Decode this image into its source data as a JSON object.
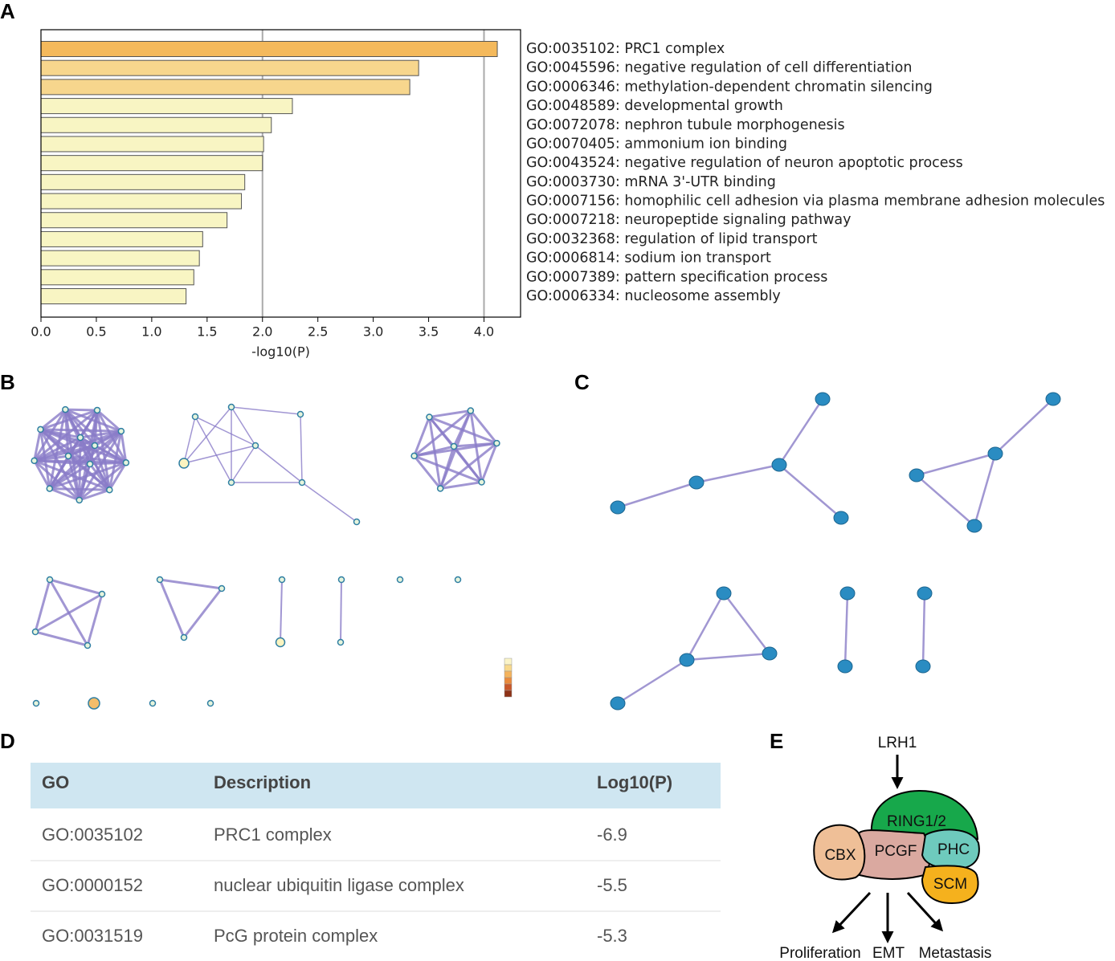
{
  "panel_labels": [
    "A",
    "B",
    "C",
    "D",
    "E"
  ],
  "chart_data": {
    "type": "hbar",
    "x_label": "-log10(P)",
    "categories": [
      "GO:0035102: PRC1 complex",
      "GO:0045596: negative regulation of cell differentiation",
      "GO:0006346: methylation-dependent chromatin silencing",
      "GO:0048589: developmental growth",
      "GO:0072078: nephron tubule morphogenesis",
      "GO:0070405: ammonium ion binding",
      "GO:0043524: negative regulation of neuron apoptotic process",
      "GO:0003730: mRNA 3'-UTR binding",
      "GO:0007156: homophilic cell adhesion via plasma membrane adhesion molecules",
      "GO:0007218: neuropeptide signaling pathway",
      "GO:0032368: regulation of lipid transport",
      "GO:0006814: sodium ion transport",
      "GO:0007389: pattern specification process",
      "GO:0006334: nucleosome assembly"
    ],
    "values": [
      4.12,
      3.41,
      3.33,
      2.27,
      2.08,
      2.01,
      2.0,
      1.84,
      1.81,
      1.68,
      1.46,
      1.43,
      1.38,
      1.31
    ],
    "colors": [
      "#f4b95c",
      "#f7d68d",
      "#f7d68d",
      "#f8f5c3",
      "#f8f5c3",
      "#f8f5c3",
      "#f8f5c3",
      "#f8f5c3",
      "#f8f5c3",
      "#f8f5c3",
      "#f8f5c3",
      "#f8f5c3",
      "#f8f5c3",
      "#f8f5c3"
    ],
    "xlim": [
      0,
      4.33
    ],
    "xticks": [
      {
        "value": 0,
        "label": "0.0"
      },
      {
        "value": 0.5,
        "label": "0.5"
      },
      {
        "value": 1,
        "label": "1.0"
      },
      {
        "value": 1.5,
        "label": "1.5"
      },
      {
        "value": 2,
        "label": "2.0"
      },
      {
        "value": 2.5,
        "label": "2.5"
      },
      {
        "value": 3,
        "label": "3.0"
      },
      {
        "value": 3.5,
        "label": "3.5"
      },
      {
        "value": 4,
        "label": "4.0"
      }
    ],
    "grid_lines": [
      2,
      4
    ]
  },
  "table": {
    "header": [
      "GO",
      "Description",
      "Log10(P)"
    ],
    "rows": [
      [
        "GO:0035102",
        "PRC1 complex",
        -6.9
      ],
      [
        "GO:0000152",
        "nuclear ubiquitin ligase complex",
        -5.5
      ],
      [
        "GO:0031519",
        "PcG protein complex",
        -5.3
      ]
    ]
  },
  "diagram": {
    "input": "LRH1",
    "complex": [
      "RING1/2",
      "PCGF",
      "PHC",
      "CBX",
      "SCM"
    ],
    "outputs": [
      "Proliferation",
      "EMT",
      "Metastasis"
    ]
  }
}
